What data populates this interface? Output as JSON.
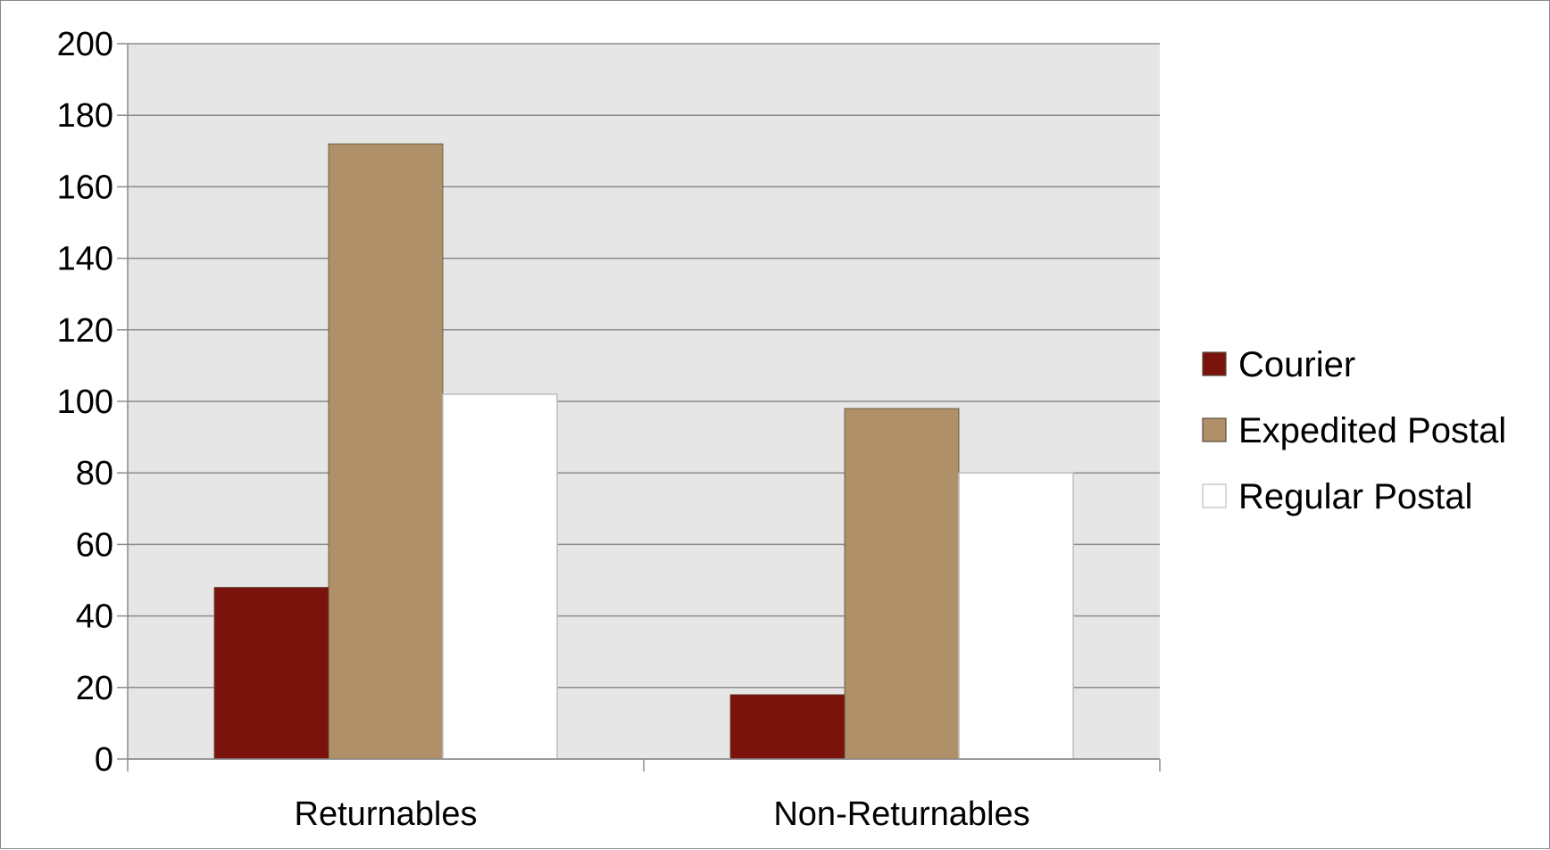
{
  "chart_data": {
    "type": "bar",
    "title": "",
    "xlabel": "",
    "ylabel": "",
    "categories": [
      "Returnables",
      "Non-Returnables"
    ],
    "series": [
      {
        "name": "Courier",
        "values": [
          48,
          18
        ],
        "color": "#7b130d"
      },
      {
        "name": "Expedited Postal",
        "values": [
          172,
          98
        ],
        "color": "#b09069"
      },
      {
        "name": "Regular Postal",
        "values": [
          102,
          80
        ],
        "color": "#ffffff"
      }
    ],
    "ylim": [
      0,
      200
    ],
    "yticks": [
      0,
      20,
      40,
      60,
      80,
      100,
      120,
      140,
      160,
      180,
      200
    ],
    "grid": true,
    "plot_background": "#e6e6e6",
    "legend_position": "right"
  }
}
